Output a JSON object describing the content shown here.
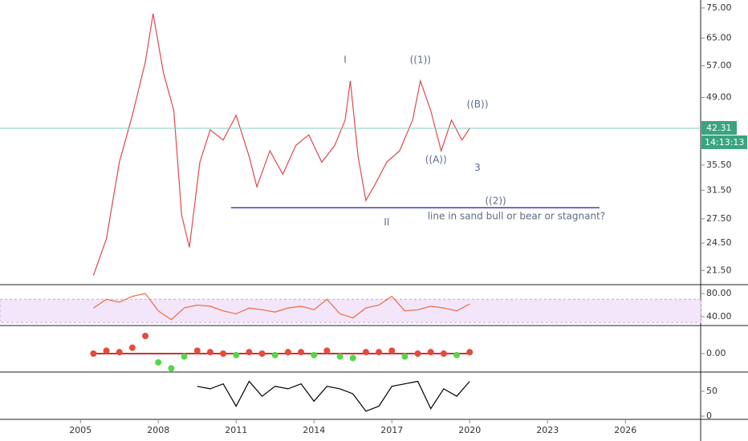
{
  "chart_data": [
    {
      "type": "line",
      "log_scale": true,
      "color": "#e0484e",
      "x": [
        2005.5,
        2006.0,
        2006.5,
        2007.0,
        2007.5,
        2007.8,
        2008.2,
        2008.6,
        2008.9,
        2009.2,
        2009.6,
        2010.0,
        2010.5,
        2011.0,
        2011.5,
        2011.8,
        2012.3,
        2012.8,
        2013.3,
        2013.8,
        2014.3,
        2014.8,
        2015.2,
        2015.4,
        2015.7,
        2016.0,
        2016.3,
        2016.8,
        2017.3,
        2017.8,
        2018.1,
        2018.5,
        2018.9,
        2019.3,
        2019.7,
        2020.0
      ],
      "values": [
        21,
        25,
        36,
        45,
        58,
        73,
        55,
        46,
        28,
        24,
        36,
        42,
        40,
        45,
        37,
        32,
        38,
        34,
        39,
        41,
        36,
        39,
        44,
        53,
        37,
        30,
        32,
        36,
        38,
        44,
        53,
        46,
        38,
        44,
        40,
        42.31
      ],
      "xlim": [
        2001.9,
        2028.9
      ],
      "xticks": [
        2005,
        2008,
        2011,
        2014,
        2017,
        2020,
        2023,
        2026
      ],
      "ylim": [
        20.1,
        77.9
      ],
      "yticks": [
        {
          "value": 75,
          "label": "75.00"
        },
        {
          "value": 65,
          "label": "65.00"
        },
        {
          "value": 57,
          "label": "57.00"
        },
        {
          "value": 49,
          "label": "49.00"
        },
        {
          "value": 35.5,
          "label": "35.50"
        },
        {
          "value": 31.5,
          "label": "31.50"
        },
        {
          "value": 27.5,
          "label": "27.50"
        },
        {
          "value": 24.5,
          "label": "24.50"
        },
        {
          "value": 21.5,
          "label": "21.50"
        }
      ],
      "last_price": {
        "value": 42.31,
        "label": "42.31"
      },
      "countdown": "14:13:13",
      "support_line": {
        "value": 29,
        "x": [
          2010.8,
          2025.0
        ],
        "color": "#3f3fc8"
      },
      "annotations": [
        {
          "text": "I",
          "x": 2015.2,
          "y": 58.5
        },
        {
          "text": "((1))",
          "x": 2018.1,
          "y": 58.5
        },
        {
          "text": "((B))",
          "x": 2020.3,
          "y": 47.3
        },
        {
          "text": "((A))",
          "x": 2018.7,
          "y": 36.4
        },
        {
          "text": "3",
          "x": 2020.3,
          "y": 35.0
        },
        {
          "text": "((2))",
          "x": 2021.0,
          "y": 29.9
        },
        {
          "text": "II",
          "x": 2016.8,
          "y": 27.0
        },
        {
          "text": "line in sand bull or bear or stagnant?",
          "x": 2021.8,
          "y": 27.8
        }
      ]
    },
    {
      "type": "line",
      "color": "#f06a3c",
      "band": [
        30,
        70
      ],
      "x": [
        2005.5,
        2006.0,
        2006.5,
        2007.0,
        2007.5,
        2008.0,
        2008.5,
        2009.0,
        2009.5,
        2010.0,
        2010.5,
        2011.0,
        2011.5,
        2012.0,
        2012.5,
        2013.0,
        2013.5,
        2014.0,
        2014.5,
        2015.0,
        2015.5,
        2016.0,
        2016.5,
        2017.0,
        2017.5,
        2018.0,
        2018.5,
        2019.0,
        2019.5,
        2020.0
      ],
      "values": [
        55,
        70,
        65,
        75,
        80,
        50,
        35,
        55,
        60,
        58,
        50,
        45,
        55,
        52,
        48,
        55,
        58,
        52,
        70,
        45,
        38,
        55,
        60,
        75,
        50,
        52,
        58,
        55,
        50,
        62
      ],
      "xlim": [
        2001.9,
        2028.9
      ],
      "ylim": [
        26.2,
        93.8
      ],
      "yticks": [
        {
          "value": 80,
          "label": "80.00"
        },
        {
          "value": 40,
          "label": "40.00"
        }
      ]
    },
    {
      "type": "dots",
      "x": [
        2005.5,
        2006.0,
        2006.5,
        2007.0,
        2007.5,
        2008.0,
        2008.5,
        2009.0,
        2009.5,
        2010.0,
        2010.5,
        2011.0,
        2011.5,
        2012.0,
        2012.5,
        2013.0,
        2013.5,
        2014.0,
        2014.5,
        2015.0,
        2015.5,
        2016.0,
        2016.5,
        2017.0,
        2017.5,
        2018.0,
        2018.5,
        2019.0,
        2019.5,
        2020.0
      ],
      "values": [
        0,
        0.1,
        0.05,
        0.2,
        0.6,
        -0.3,
        -0.5,
        -0.1,
        0.1,
        0.05,
        0,
        -0.05,
        0.05,
        0,
        -0.05,
        0.05,
        0.05,
        -0.05,
        0.1,
        -0.1,
        -0.15,
        0.05,
        0.05,
        0.1,
        -0.1,
        0,
        0.05,
        0,
        -0.05,
        0.05
      ],
      "xlim": [
        2001.9,
        2028.9
      ],
      "ylim": [
        -0.6,
        0.9
      ],
      "yticks": [
        {
          "value": 0,
          "label": "0.00"
        }
      ]
    },
    {
      "type": "line",
      "color": "#000000",
      "x": [
        2009.5,
        2010.0,
        2010.5,
        2011.0,
        2011.5,
        2012.0,
        2012.5,
        2013.0,
        2013.5,
        2014.0,
        2014.5,
        2015.0,
        2015.5,
        2016.0,
        2016.5,
        2017.0,
        2017.5,
        2018.0,
        2018.5,
        2019.0,
        2019.5,
        2020.0
      ],
      "values": [
        60,
        55,
        65,
        20,
        70,
        40,
        60,
        55,
        65,
        30,
        60,
        55,
        45,
        10,
        20,
        60,
        65,
        70,
        15,
        55,
        40,
        70
      ],
      "xlim": [
        2001.9,
        2028.9
      ],
      "ylim": [
        -4.8,
        85.5
      ],
      "yticks": [
        50,
        0
      ]
    }
  ]
}
